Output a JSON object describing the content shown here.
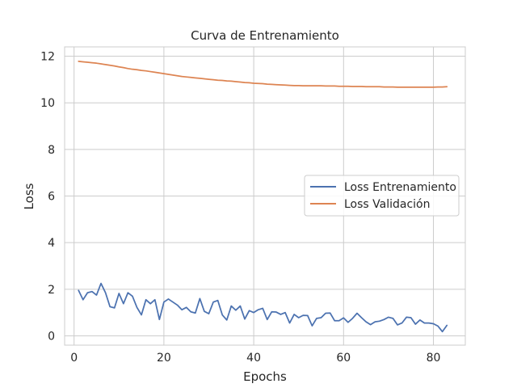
{
  "chart_data": {
    "type": "line",
    "title": "Curva de Entrenamiento",
    "xlabel": "Epochs",
    "ylabel": "Loss",
    "xlim": [
      -2.1,
      87.1
    ],
    "ylim": [
      -0.4,
      12.4
    ],
    "xticks": [
      0,
      20,
      40,
      60,
      80
    ],
    "yticks": [
      0,
      2,
      4,
      6,
      8,
      10,
      12
    ],
    "grid": true,
    "legend_position": "center-right",
    "x": [
      1,
      2,
      3,
      4,
      5,
      6,
      7,
      8,
      9,
      10,
      11,
      12,
      13,
      14,
      15,
      16,
      17,
      18,
      19,
      20,
      21,
      22,
      23,
      24,
      25,
      26,
      27,
      28,
      29,
      30,
      31,
      32,
      33,
      34,
      35,
      36,
      37,
      38,
      39,
      40,
      41,
      42,
      43,
      44,
      45,
      46,
      47,
      48,
      49,
      50,
      51,
      52,
      53,
      54,
      55,
      56,
      57,
      58,
      59,
      60,
      61,
      62,
      63,
      64,
      65,
      66,
      67,
      68,
      69,
      70,
      71,
      72,
      73,
      74,
      75,
      76,
      77,
      78,
      79,
      80,
      81,
      82,
      83
    ],
    "series": [
      {
        "name": "Loss Entrenamiento",
        "color": "#4c72b0",
        "values": [
          1.95,
          1.55,
          1.85,
          1.9,
          1.75,
          2.25,
          1.85,
          1.25,
          1.2,
          1.82,
          1.38,
          1.85,
          1.7,
          1.22,
          0.9,
          1.55,
          1.38,
          1.55,
          0.7,
          1.45,
          1.58,
          1.45,
          1.32,
          1.12,
          1.22,
          1.03,
          0.98,
          1.6,
          1.05,
          0.95,
          1.45,
          1.52,
          0.9,
          0.68,
          1.28,
          1.1,
          1.28,
          0.72,
          1.08,
          1.0,
          1.12,
          1.18,
          0.7,
          1.03,
          1.02,
          0.92,
          1.0,
          0.55,
          0.92,
          0.78,
          0.88,
          0.87,
          0.43,
          0.75,
          0.78,
          0.97,
          0.98,
          0.65,
          0.65,
          0.77,
          0.58,
          0.75,
          0.97,
          0.78,
          0.6,
          0.48,
          0.6,
          0.63,
          0.7,
          0.8,
          0.75,
          0.47,
          0.55,
          0.8,
          0.78,
          0.5,
          0.68,
          0.55,
          0.55,
          0.52,
          0.42,
          0.18,
          0.45
        ]
      },
      {
        "name": "Loss Validación",
        "color": "#dd8452",
        "values": [
          11.78,
          11.76,
          11.74,
          11.72,
          11.7,
          11.67,
          11.64,
          11.61,
          11.58,
          11.54,
          11.51,
          11.47,
          11.44,
          11.42,
          11.39,
          11.37,
          11.34,
          11.31,
          11.28,
          11.25,
          11.22,
          11.19,
          11.16,
          11.13,
          11.11,
          11.09,
          11.07,
          11.05,
          11.03,
          11.01,
          10.99,
          10.97,
          10.96,
          10.94,
          10.93,
          10.91,
          10.89,
          10.87,
          10.86,
          10.84,
          10.83,
          10.82,
          10.8,
          10.79,
          10.78,
          10.77,
          10.76,
          10.75,
          10.74,
          10.74,
          10.73,
          10.73,
          10.73,
          10.73,
          10.73,
          10.72,
          10.72,
          10.72,
          10.71,
          10.71,
          10.71,
          10.7,
          10.7,
          10.7,
          10.69,
          10.69,
          10.69,
          10.69,
          10.68,
          10.68,
          10.68,
          10.67,
          10.67,
          10.67,
          10.67,
          10.67,
          10.67,
          10.67,
          10.67,
          10.67,
          10.68,
          10.68,
          10.69
        ]
      }
    ]
  }
}
